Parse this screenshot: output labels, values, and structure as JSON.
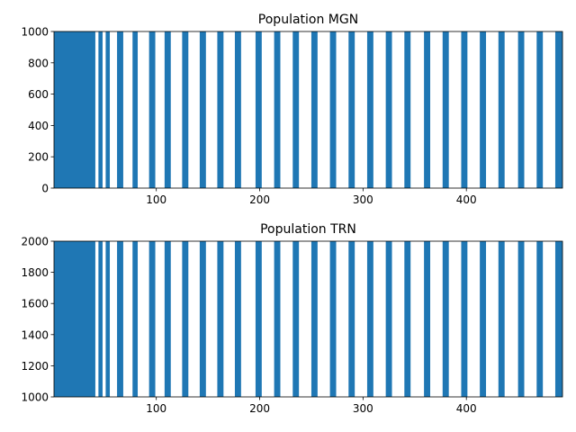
{
  "colors": {
    "raster": "#1f77b4",
    "axes": "#000000",
    "background": "#ffffff"
  },
  "chart_data": [
    {
      "type": "scatter",
      "title": "Population MGN",
      "xlabel": "",
      "ylabel": "",
      "xlim": [
        1,
        493
      ],
      "ylim": [
        0,
        1000
      ],
      "xticks": [
        100,
        200,
        300,
        400
      ],
      "yticks": [
        0,
        200,
        400,
        600,
        800,
        1000
      ],
      "grid": false,
      "series": [
        {
          "description_of_marks": "spike raster",
          "neuron_id_range": [
            0,
            1000
          ],
          "dense_initial_interval": [
            1,
            41
          ],
          "burst_intervals": [
            [
              44,
              48
            ],
            [
              51,
              55
            ],
            [
              62,
              68
            ],
            [
              77,
              82
            ],
            [
              93,
              99
            ],
            [
              108,
              114
            ],
            [
              125,
              131
            ],
            [
              142,
              148
            ],
            [
              159,
              165
            ],
            [
              176,
              182
            ],
            [
              196,
              202
            ],
            [
              214,
              220
            ],
            [
              232,
              238
            ],
            [
              250,
              256
            ],
            [
              268,
              274
            ],
            [
              286,
              292
            ],
            [
              304,
              310
            ],
            [
              322,
              328
            ],
            [
              340,
              346
            ],
            [
              359,
              365
            ],
            [
              377,
              383
            ],
            [
              395,
              401
            ],
            [
              413,
              419
            ],
            [
              431,
              437
            ],
            [
              450,
              456
            ],
            [
              468,
              474
            ],
            [
              486,
              493
            ]
          ]
        }
      ]
    },
    {
      "type": "scatter",
      "title": "Population TRN",
      "xlabel": "",
      "ylabel": "",
      "xlim": [
        1,
        493
      ],
      "ylim": [
        1000,
        2000
      ],
      "xticks": [
        100,
        200,
        300,
        400
      ],
      "yticks": [
        1000,
        1200,
        1400,
        1600,
        1800,
        2000
      ],
      "grid": false,
      "series": [
        {
          "neuron_id_range": [
            1000,
            2000
          ],
          "dense_initial_interval": [
            1,
            41
          ],
          "burst_intervals": [
            [
              44,
              48
            ],
            [
              51,
              55
            ],
            [
              62,
              68
            ],
            [
              77,
              82
            ],
            [
              93,
              99
            ],
            [
              108,
              114
            ],
            [
              125,
              131
            ],
            [
              142,
              148
            ],
            [
              159,
              165
            ],
            [
              176,
              182
            ],
            [
              196,
              202
            ],
            [
              214,
              220
            ],
            [
              232,
              238
            ],
            [
              250,
              256
            ],
            [
              268,
              274
            ],
            [
              286,
              292
            ],
            [
              304,
              310
            ],
            [
              322,
              328
            ],
            [
              340,
              346
            ],
            [
              359,
              365
            ],
            [
              377,
              383
            ],
            [
              395,
              401
            ],
            [
              413,
              419
            ],
            [
              431,
              437
            ],
            [
              450,
              456
            ],
            [
              468,
              474
            ],
            [
              486,
              493
            ]
          ]
        }
      ]
    }
  ]
}
